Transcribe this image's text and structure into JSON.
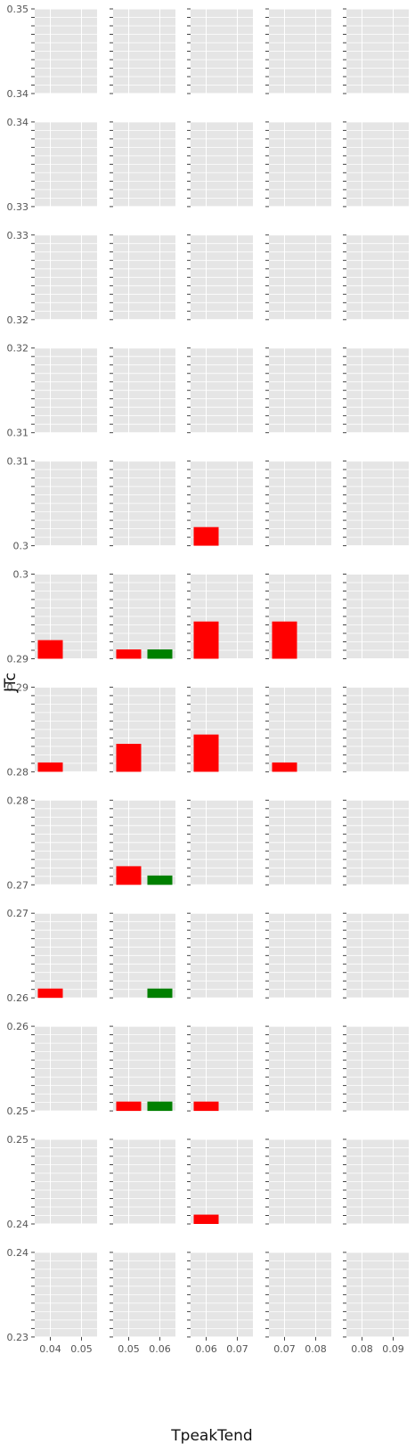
{
  "chart_data": {
    "type": "bar",
    "xlabel": "TpeakTend",
    "ylabel": "JTc",
    "grid": true,
    "layout": "facet-grid",
    "colors": {
      "panel_bg": "#e5e5e5",
      "grid": "#ffffff",
      "red": "#ff0000",
      "green": "#008000"
    },
    "rows": [
      {
        "ylim": [
          0.34,
          0.35
        ],
        "ytick_labels": [
          "0.35",
          "0.34"
        ]
      },
      {
        "ylim": [
          0.33,
          0.34
        ],
        "ytick_labels": [
          "0.34",
          "0.33"
        ]
      },
      {
        "ylim": [
          0.32,
          0.33
        ],
        "ytick_labels": [
          "0.33",
          "0.32"
        ]
      },
      {
        "ylim": [
          0.31,
          0.32
        ],
        "ytick_labels": [
          "0.32",
          "0.31"
        ]
      },
      {
        "ylim": [
          0.3,
          0.31
        ],
        "ytick_labels": [
          "0.31",
          "0.3"
        ]
      },
      {
        "ylim": [
          0.29,
          0.3
        ],
        "ytick_labels": [
          "0.3",
          "0.29"
        ]
      },
      {
        "ylim": [
          0.28,
          0.29
        ],
        "ytick_labels": [
          "0.29",
          "0.28"
        ]
      },
      {
        "ylim": [
          0.27,
          0.28
        ],
        "ytick_labels": [
          "0.28",
          "0.27"
        ]
      },
      {
        "ylim": [
          0.26,
          0.27
        ],
        "ytick_labels": [
          "0.27",
          "0.26"
        ]
      },
      {
        "ylim": [
          0.25,
          0.26
        ],
        "ytick_labels": [
          "0.26",
          "0.25"
        ]
      },
      {
        "ylim": [
          0.24,
          0.25
        ],
        "ytick_labels": [
          "0.25",
          "0.24"
        ]
      },
      {
        "ylim": [
          0.23,
          0.24
        ],
        "ytick_labels": [
          "0.24",
          "0.23"
        ]
      }
    ],
    "columns": [
      {
        "xlim": [
          0.035,
          0.055
        ],
        "xtick_labels": [
          {
            "v": 0.04,
            "t": "0.04"
          },
          {
            "v": 0.05,
            "t": "0.05"
          }
        ]
      },
      {
        "xlim": [
          0.045,
          0.065
        ],
        "xtick_labels": [
          {
            "v": 0.05,
            "t": "0.05"
          },
          {
            "v": 0.06,
            "t": "0.06"
          }
        ]
      },
      {
        "xlim": [
          0.055,
          0.075
        ],
        "xtick_labels": [
          {
            "v": 0.06,
            "t": "0.06"
          },
          {
            "v": 0.07,
            "t": "0.07"
          }
        ]
      },
      {
        "xlim": [
          0.065,
          0.085
        ],
        "xtick_labels": [
          {
            "v": 0.07,
            "t": "0.07"
          },
          {
            "v": 0.08,
            "t": "0.08"
          }
        ]
      },
      {
        "xlim": [
          0.075,
          0.095
        ],
        "xtick_labels": [
          {
            "v": 0.08,
            "t": "0.08"
          },
          {
            "v": 0.09,
            "t": "0.09"
          }
        ]
      }
    ],
    "bars": [
      {
        "row": 4,
        "col": 2,
        "x0": 0.056,
        "x1": 0.064,
        "y": 0.3022,
        "color": "red"
      },
      {
        "row": 5,
        "col": 0,
        "x0": 0.036,
        "x1": 0.044,
        "y": 0.2922,
        "color": "red"
      },
      {
        "row": 5,
        "col": 1,
        "x0": 0.046,
        "x1": 0.054,
        "y": 0.2911,
        "color": "red"
      },
      {
        "row": 5,
        "col": 1,
        "x0": 0.056,
        "x1": 0.064,
        "y": 0.2911,
        "color": "green"
      },
      {
        "row": 5,
        "col": 2,
        "x0": 0.056,
        "x1": 0.064,
        "y": 0.2944,
        "color": "red"
      },
      {
        "row": 5,
        "col": 3,
        "x0": 0.066,
        "x1": 0.074,
        "y": 0.2944,
        "color": "red"
      },
      {
        "row": 6,
        "col": 0,
        "x0": 0.036,
        "x1": 0.044,
        "y": 0.2811,
        "color": "red"
      },
      {
        "row": 6,
        "col": 1,
        "x0": 0.046,
        "x1": 0.054,
        "y": 0.2833,
        "color": "red"
      },
      {
        "row": 6,
        "col": 2,
        "x0": 0.056,
        "x1": 0.064,
        "y": 0.2844,
        "color": "red"
      },
      {
        "row": 6,
        "col": 3,
        "x0": 0.066,
        "x1": 0.074,
        "y": 0.2811,
        "color": "red"
      },
      {
        "row": 7,
        "col": 1,
        "x0": 0.046,
        "x1": 0.054,
        "y": 0.2722,
        "color": "red"
      },
      {
        "row": 7,
        "col": 1,
        "x0": 0.056,
        "x1": 0.064,
        "y": 0.2711,
        "color": "green"
      },
      {
        "row": 8,
        "col": 0,
        "x0": 0.036,
        "x1": 0.044,
        "y": 0.2611,
        "color": "red"
      },
      {
        "row": 8,
        "col": 1,
        "x0": 0.056,
        "x1": 0.064,
        "y": 0.2611,
        "color": "green"
      },
      {
        "row": 9,
        "col": 1,
        "x0": 0.046,
        "x1": 0.054,
        "y": 0.2511,
        "color": "red"
      },
      {
        "row": 9,
        "col": 1,
        "x0": 0.056,
        "x1": 0.064,
        "y": 0.2511,
        "color": "green"
      },
      {
        "row": 9,
        "col": 2,
        "x0": 0.056,
        "x1": 0.064,
        "y": 0.2511,
        "color": "red"
      },
      {
        "row": 10,
        "col": 2,
        "x0": 0.056,
        "x1": 0.064,
        "y": 0.2411,
        "color": "red"
      }
    ]
  }
}
